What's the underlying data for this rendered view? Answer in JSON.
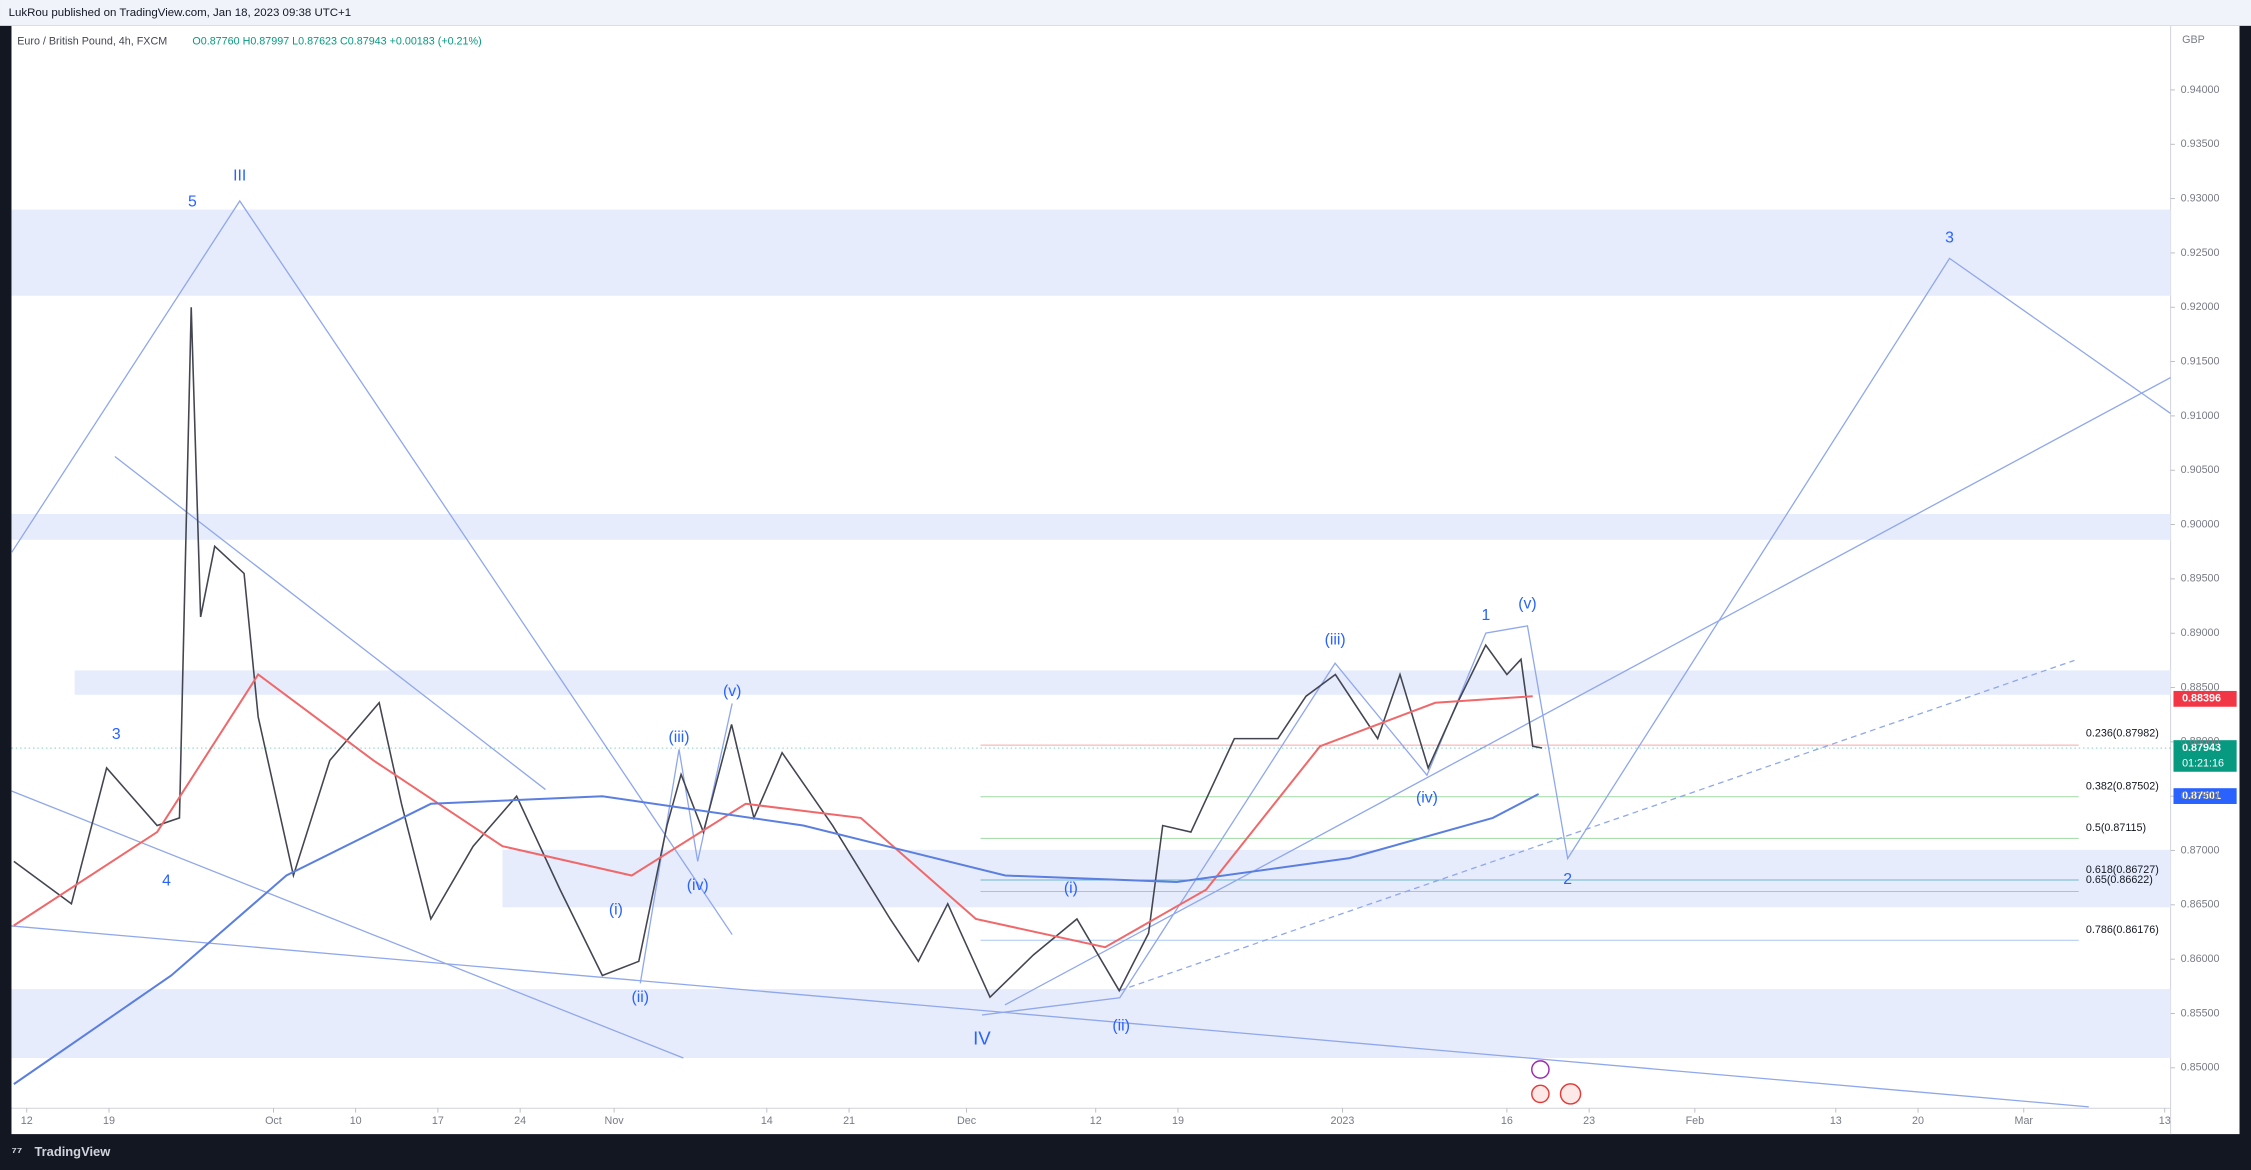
{
  "header": {
    "published": "LukRou published on TradingView.com, Jan 18, 2023 09:38 UTC+1",
    "currency": "GBP",
    "brand": "TradingView"
  },
  "chart_data": {
    "type": "line",
    "title": "Euro / British Pound, 4h, FXCM",
    "subtitle": "O0.87760 H0.87997 L0.87623 C0.87943 +0.00183 (+0.21%)",
    "xlim": [
      -1.3,
      182.5
    ],
    "ylim": [
      0.8439,
      0.9459
    ],
    "xticks": [
      {
        "value": 0,
        "label": "12"
      },
      {
        "value": 7,
        "label": "19"
      },
      {
        "value": 21,
        "label": "Oct"
      },
      {
        "value": 28,
        "label": "10"
      },
      {
        "value": 35,
        "label": "17"
      },
      {
        "value": 42,
        "label": "24"
      },
      {
        "value": 50,
        "label": "Nov"
      },
      {
        "value": 63,
        "label": "14"
      },
      {
        "value": 70,
        "label": "21"
      },
      {
        "value": 80,
        "label": "Dec"
      },
      {
        "value": 91,
        "label": "12"
      },
      {
        "value": 98,
        "label": "19"
      },
      {
        "value": 112,
        "label": "2023"
      },
      {
        "value": 126,
        "label": "16"
      },
      {
        "value": 133,
        "label": "23"
      },
      {
        "value": 142,
        "label": "Feb"
      },
      {
        "value": 154,
        "label": "13"
      },
      {
        "value": 161,
        "label": "20"
      },
      {
        "value": 170,
        "label": "Mar"
      },
      {
        "value": 182,
        "label": "13"
      }
    ],
    "yticks": [
      {
        "value": 0.85,
        "label": "0.85000"
      },
      {
        "value": 0.855,
        "label": "0.85500"
      },
      {
        "value": 0.86,
        "label": "0.86000"
      },
      {
        "value": 0.865,
        "label": "0.86500"
      },
      {
        "value": 0.87,
        "label": "0.87000"
      },
      {
        "value": 0.875,
        "label": "0.87500"
      },
      {
        "value": 0.88,
        "label": "0.88000"
      },
      {
        "value": 0.885,
        "label": "0.88500"
      },
      {
        "value": 0.89,
        "label": "0.89000"
      },
      {
        "value": 0.895,
        "label": "0.89500"
      },
      {
        "value": 0.9,
        "label": "0.90000"
      },
      {
        "value": 0.905,
        "label": "0.90500"
      },
      {
        "value": 0.91,
        "label": "0.91000"
      },
      {
        "value": 0.915,
        "label": "0.91500"
      },
      {
        "value": 0.92,
        "label": "0.92000"
      },
      {
        "value": 0.925,
        "label": "0.92500"
      },
      {
        "value": 0.93,
        "label": "0.93000"
      },
      {
        "value": 0.935,
        "label": "0.93500"
      },
      {
        "value": 0.94,
        "label": "0.94000"
      }
    ],
    "series": [
      {
        "color": "#434651",
        "x": [
          -1.1,
          3.8,
          6.8,
          11.1,
          13,
          14,
          14.8,
          16,
          18.5,
          19.7,
          22.7,
          25.8,
          30,
          31.9,
          34.4,
          38,
          41.7,
          45.4,
          49,
          52.1,
          54.5,
          55.7,
          57.6,
          60,
          61.9,
          64.3,
          68.6,
          73.5,
          75.9,
          78.4,
          82,
          85.7,
          89.4,
          93,
          95.5,
          96.7,
          99.1,
          102.8,
          106.5,
          108.9,
          111.4,
          115,
          116.9,
          119.3,
          121.8,
          124.2,
          126,
          127.2,
          128.2,
          129
        ],
        "values": [
          0.869,
          0.8651,
          0.8776,
          0.8723,
          0.873,
          0.92,
          0.8915,
          0.898,
          0.8955,
          0.8823,
          0.8677,
          0.8783,
          0.8836,
          0.8743,
          0.8637,
          0.8704,
          0.875,
          0.8664,
          0.8585,
          0.8598,
          0.8723,
          0.877,
          0.8717,
          0.8816,
          0.873,
          0.879,
          0.8723,
          0.8637,
          0.8598,
          0.8651,
          0.8565,
          0.8604,
          0.8637,
          0.8571,
          0.8624,
          0.8723,
          0.8717,
          0.8803,
          0.8803,
          0.8842,
          0.8862,
          0.8803,
          0.8862,
          0.8776,
          0.8836,
          0.8889,
          0.8862,
          0.8876,
          0.8796,
          0.87943
        ]
      },
      {
        "color": "#f0686a",
        "x": [
          -1.1,
          11.1,
          19.7,
          29.5,
          40.5,
          51.5,
          61.2,
          71,
          80.8,
          91.8,
          100.4,
          110.1,
          119.9,
          128.2
        ],
        "values": [
          0.8631,
          0.8717,
          0.8862,
          0.8783,
          0.8704,
          0.8677,
          0.8743,
          0.873,
          0.8637,
          0.8611,
          0.8664,
          0.8796,
          0.8836,
          0.8842
        ]
      },
      {
        "color": "#5b7fe0",
        "x": [
          -1.1,
          12.3,
          22.1,
          34.4,
          49,
          66.1,
          83.3,
          97.9,
          112.6,
          124.8,
          128.7
        ],
        "values": [
          0.8485,
          0.8585,
          0.8677,
          0.8743,
          0.875,
          0.8723,
          0.8677,
          0.8671,
          0.8693,
          0.873,
          0.8752
        ]
      }
    ],
    "annotations": [
      "5",
      "III",
      "3",
      "4",
      "(i)",
      "(ii)",
      "(iii)",
      "(iv)",
      "(v)",
      "IV",
      "(i)",
      "(ii)",
      "(iii)",
      "(iv)",
      "1",
      "(v)",
      "2",
      "3"
    ],
    "fib_labels": [
      "0.236(0.87982)",
      "0.382(0.87502)",
      "0.5(0.87115)",
      "0.618(0.86727)",
      "0.65(0.86622)",
      "0.786(0.86176)"
    ],
    "price_tags": [
      {
        "value": 0.88396,
        "label": "0.88396",
        "color": "#f23645"
      },
      {
        "value": 0.87943,
        "label": "0.87943",
        "color": "#089981",
        "timer": "01:21:16"
      },
      {
        "value": 0.87501,
        "label": "0.87501",
        "color": "#2962ff"
      }
    ]
  }
}
